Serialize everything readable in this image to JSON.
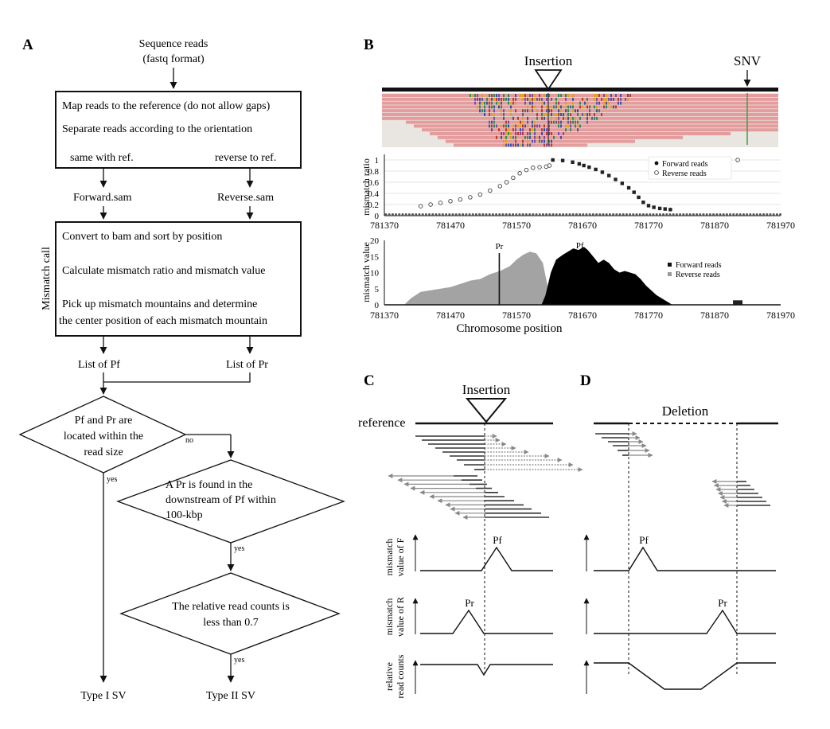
{
  "panels": {
    "a": {
      "letter": "A",
      "start_line1": "Sequence reads",
      "start_line2": "(fastq format)",
      "map_line1": "Map reads to the reference (do not allow gaps)",
      "map_line2": "Separate reads according to the orientation",
      "map_left": "same with ref.",
      "map_right": "reverse to ref.",
      "forward_sam": "Forward.sam",
      "reverse_sam": "Reverse.sam",
      "side_label": "Mismatch call",
      "call_line1": "Convert to bam and sort by position",
      "call_line2": "Calculate mismatch ratio and mismatch value",
      "call_line3": "Pick up mismatch mountains and determine",
      "call_line4": "the center position of each mismatch mountain",
      "list_pf": "List of Pf",
      "list_pr": "List of Pr",
      "d1_line1": "Pf and Pr are",
      "d1_line2": "located within the",
      "d1_line3": "read size",
      "d2_line1": "A Pr is found in the",
      "d2_line2": "downstream of Pf within",
      "d2_line3": "100-kbp",
      "d3_line1": "The relative read counts is",
      "d3_line2": "less than 0.7",
      "label_no": "no",
      "label_yes": "yes",
      "type1": "Type I SV",
      "type2": "Type II SV"
    },
    "b": {
      "letter": "B",
      "insertion": "Insertion",
      "snv": "SNV",
      "legend_forward": "Forward reads",
      "legend_reverse": "Reverse reads",
      "pr": "Pr",
      "pf": "Pf"
    },
    "c": {
      "letter": "C",
      "insertion": "Insertion",
      "reference": "reference",
      "pf": "Pf",
      "pr": "Pr"
    },
    "d": {
      "letter": "D",
      "deletion": "Deletion",
      "pf": "Pf",
      "pr": "Pr"
    },
    "cd_labels": {
      "f_line1": "mismatch",
      "f_line2": "value of F",
      "r_line1": "mismatch",
      "r_line2": "value of R",
      "c_line1": "relative",
      "c_line2": "read counts"
    }
  },
  "chart_data": [
    {
      "type": "scatter",
      "ylabel": "mismatch ratio",
      "xlim": [
        781370,
        781970
      ],
      "ylim": [
        0,
        1.1
      ],
      "x_ticks": [
        781370,
        781470,
        781570,
        781670,
        781770,
        781870,
        781970
      ],
      "y_ticks": [
        "0",
        "0.2",
        "0.4",
        "0.6",
        "0.8",
        "1"
      ],
      "legend_position": "top-right",
      "series": [
        {
          "name": "Forward reads",
          "marker": "filled",
          "points": [
            [
              781625,
              1.0
            ],
            [
              781640,
              0.99
            ],
            [
              781655,
              0.96
            ],
            [
              781665,
              0.93
            ],
            [
              781672,
              0.9
            ],
            [
              781680,
              0.87
            ],
            [
              781690,
              0.83
            ],
            [
              781700,
              0.78
            ],
            [
              781710,
              0.72
            ],
            [
              781720,
              0.65
            ],
            [
              781730,
              0.58
            ],
            [
              781740,
              0.5
            ],
            [
              781748,
              0.42
            ],
            [
              781755,
              0.33
            ],
            [
              781762,
              0.24
            ],
            [
              781770,
              0.18
            ],
            [
              781778,
              0.15
            ],
            [
              781787,
              0.13
            ],
            [
              781795,
              0.12
            ],
            [
              781803,
              0.11
            ]
          ]
        },
        {
          "name": "Reverse reads",
          "marker": "open",
          "points": [
            [
              781425,
              0.17
            ],
            [
              781440,
              0.2
            ],
            [
              781455,
              0.23
            ],
            [
              781470,
              0.26
            ],
            [
              781485,
              0.29
            ],
            [
              781500,
              0.33
            ],
            [
              781515,
              0.38
            ],
            [
              781530,
              0.45
            ],
            [
              781545,
              0.53
            ],
            [
              781555,
              0.6
            ],
            [
              781565,
              0.68
            ],
            [
              781575,
              0.76
            ],
            [
              781585,
              0.82
            ],
            [
              781595,
              0.86
            ],
            [
              781605,
              0.87
            ],
            [
              781615,
              0.88
            ],
            [
              781620,
              0.9
            ],
            [
              781905,
              1.0
            ]
          ]
        }
      ]
    },
    {
      "type": "area",
      "title": "",
      "ylabel": "mismatch value",
      "xlabel": "Chromosome position",
      "xlim": [
        781370,
        781970
      ],
      "ylim": [
        0,
        20
      ],
      "x_ticks": [
        781370,
        781470,
        781570,
        781670,
        781770,
        781870,
        781970
      ],
      "y_ticks": [
        "0",
        "5",
        "10",
        "15",
        "20"
      ],
      "legend_position": "right",
      "annotations": [
        {
          "text": "Pr",
          "x": 781544
        },
        {
          "text": "Pf",
          "x": 781666
        }
      ],
      "series": [
        {
          "name": "Forward reads",
          "color": "#000000",
          "x": [
            781608,
            781614,
            781622,
            781630,
            781640,
            781648,
            781656,
            781664,
            781672,
            781678,
            781686,
            781694,
            781702,
            781710,
            781718,
            781726,
            781734,
            781742,
            781750,
            781758,
            781766,
            781774,
            781782,
            781790,
            781798,
            781806
          ],
          "y": [
            0,
            3,
            10,
            14,
            15.5,
            16.5,
            17.5,
            17,
            18,
            17,
            15,
            13,
            14,
            13,
            11,
            10,
            10.5,
            10,
            9.5,
            8,
            6,
            4.5,
            3,
            2,
            1,
            0
          ]
        },
        {
          "name": "Reverse reads",
          "color": "#999999",
          "x": [
            781400,
            781410,
            781425,
            781440,
            781455,
            781470,
            781485,
            781500,
            781515,
            781530,
            781545,
            781560,
            781570,
            781580,
            781590,
            781600,
            781610,
            781618,
            781626
          ],
          "y": [
            0,
            2,
            4,
            4.5,
            5,
            5.5,
            6.5,
            7.5,
            8,
            9.5,
            10.5,
            12,
            14,
            15.5,
            16.5,
            16,
            13,
            5,
            0
          ]
        }
      ]
    }
  ]
}
